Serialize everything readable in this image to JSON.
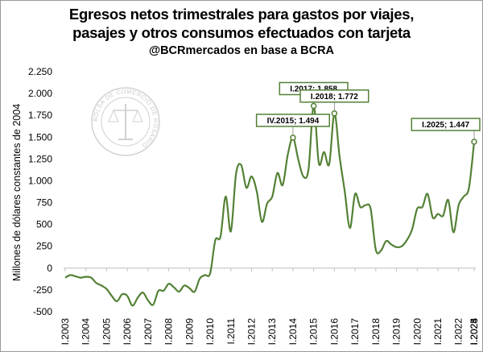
{
  "title_line1": "Egresos netos trimestrales para gastos por viajes,",
  "title_line2": "pasajes y otros consumos efectuados con tarjeta",
  "subtitle": "@BCRmercados en base a BCRA",
  "watermark_text": "BOLSA DE COMERCIO DE ROSARIO",
  "colors": {
    "line": "#538135",
    "annotation_border": "#538135",
    "marker_fill": "#ffffff"
  },
  "chart_data": {
    "type": "line",
    "title": "Egresos netos trimestrales para gastos por viajes, pasajes y otros consumos efectuados con tarjeta",
    "subtitle": "@BCRmercados en base a BCRA",
    "ylabel": "Millones de dólares constantes de 2004",
    "xlabel": "",
    "ylim": [
      -500,
      2250
    ],
    "yticks": [
      -500,
      -250,
      0,
      250,
      500,
      750,
      1000,
      1250,
      1500,
      1750,
      2000,
      2250
    ],
    "ytick_labels": [
      "-500",
      "-250",
      "0",
      "250",
      "500",
      "750",
      "1.000",
      "1.250",
      "1.500",
      "1.750",
      "2.000",
      "2.250"
    ],
    "xtick_labels": [
      "I.2003",
      "I.2004",
      "I.2005",
      "I.2006",
      "I.2007",
      "I.2008",
      "I.2009",
      "I.2010",
      "I.2011",
      "I.2012",
      "I.2013",
      "I.2014",
      "I.2015",
      "I.2016",
      "I.2017",
      "I.2018",
      "I.2019",
      "I.2020",
      "I.2021",
      "I.2022",
      "I.2023",
      "I.2024",
      "I.2025"
    ],
    "grid": false,
    "legend": "none",
    "series": [
      {
        "values": [
          -110,
          -80,
          -95,
          -110,
          -100,
          -110,
          -170,
          -200,
          -240,
          -320,
          -380,
          -300,
          -320,
          -430,
          -340,
          -280,
          -370,
          -420,
          -260,
          -260,
          -180,
          -220,
          -270,
          -200,
          -230,
          -270,
          -120,
          -80,
          -60,
          320,
          360,
          820,
          420,
          1080,
          1180,
          920,
          1050,
          880,
          530,
          740,
          820,
          1090,
          950,
          1300,
          1494,
          1250,
          1050,
          1130,
          1858,
          1200,
          1330,
          1190,
          1772,
          1280,
          880,
          460,
          850,
          700,
          720,
          680,
          210,
          200,
          310,
          270,
          240,
          250,
          320,
          440,
          680,
          700,
          850,
          580,
          620,
          600,
          780,
          410,
          720,
          820,
          920,
          1447
        ]
      }
    ],
    "annotations": [
      {
        "label": "IV.2015; 1.494",
        "index": 44,
        "value": 1494
      },
      {
        "label": "I.2017; 1.858",
        "index": 48,
        "value": 1858
      },
      {
        "label": "I.2018; 1.772",
        "index": 52,
        "value": 1772
      },
      {
        "label": "I.2025; 1.447",
        "index": 79,
        "value": 1447
      }
    ]
  }
}
